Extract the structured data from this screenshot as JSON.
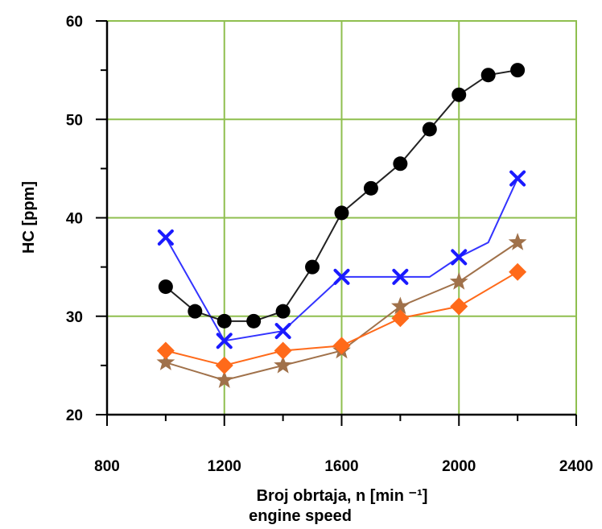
{
  "chart_data": {
    "type": "line",
    "xlabel": "Broj obrtaja, n [min ⁻¹]",
    "xlabel_sub": "engine speed",
    "ylabel": "HC [ppm]",
    "xlim": [
      800,
      2400
    ],
    "ylim": [
      20,
      60
    ],
    "xticks": [
      "800",
      "1200",
      "1600",
      "2000",
      "2400"
    ],
    "yticks": [
      "20",
      "30",
      "40",
      "50",
      "60"
    ],
    "grid": true,
    "colors": {
      "grid": "#8fbf4f",
      "axis": "#000000",
      "series_black": "#000000",
      "series_blue": "#1a1aff",
      "series_brown": "#a0714a",
      "series_orange": "#ff6a1a"
    },
    "series": [
      {
        "key": "black",
        "marker": "circle",
        "color": "#000000",
        "line_color": "#222222",
        "x": [
          1000,
          1100,
          1200,
          1300,
          1400,
          1500,
          1600,
          1700,
          1800,
          1900,
          2000,
          2100,
          2200
        ],
        "y": [
          33,
          30.5,
          29.5,
          29.5,
          30.5,
          35,
          40.5,
          43,
          45.5,
          49,
          52.5,
          54.5,
          55
        ]
      },
      {
        "key": "blue",
        "marker": "x",
        "color": "#1a1aff",
        "line_color": "#3333ff",
        "x": [
          1000,
          1200,
          1400,
          1600,
          1800,
          1900,
          2000,
          2100,
          2200
        ],
        "y": [
          38,
          27.5,
          28.5,
          34,
          34,
          34,
          36,
          37.5,
          44
        ],
        "marker_x": [
          1000,
          1200,
          1400,
          1600,
          1800,
          2000,
          2200
        ],
        "marker_y": [
          38,
          27.5,
          28.5,
          34,
          34,
          36,
          44
        ]
      },
      {
        "key": "brown",
        "marker": "star",
        "color": "#a0714a",
        "line_color": "#a0714a",
        "x": [
          1000,
          1200,
          1400,
          1600,
          1800,
          2000,
          2200
        ],
        "y": [
          25.3,
          23.5,
          25,
          26.5,
          31,
          33.5,
          37.5
        ]
      },
      {
        "key": "orange",
        "marker": "diamond",
        "color": "#ff6a1a",
        "line_color": "#ff6a1a",
        "x": [
          1000,
          1200,
          1400,
          1600,
          1800,
          2000,
          2200
        ],
        "y": [
          26.5,
          25,
          26.5,
          27,
          29.8,
          31,
          34.5
        ]
      }
    ]
  }
}
